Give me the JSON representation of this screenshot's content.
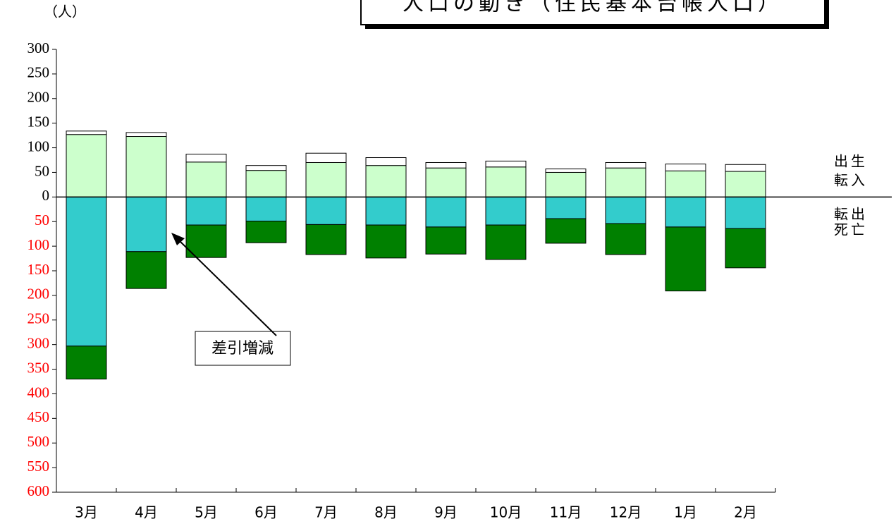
{
  "chart_data": {
    "type": "bar",
    "stacked": true,
    "title": "人口の動き（住民基本台帳人口）",
    "y_label": "（人）",
    "annotation": "差引増減",
    "categories": [
      "3月",
      "4月",
      "5月",
      "6月",
      "7月",
      "8月",
      "9月",
      "10月",
      "11月",
      "12月",
      "1月",
      "2月"
    ],
    "series": [
      {
        "name": "転入",
        "color": "#ccffcc",
        "values": [
          127,
          123,
          71,
          54,
          70,
          64,
          59,
          61,
          50,
          59,
          53,
          52
        ]
      },
      {
        "name": "出生",
        "color": "#ffffff",
        "values": [
          7,
          8,
          16,
          10,
          19,
          16,
          11,
          12,
          7,
          11,
          14,
          14
        ]
      },
      {
        "name": "転出",
        "color": "#33cccc",
        "values": [
          -303,
          -111,
          -57,
          -49,
          -56,
          -57,
          -61,
          -57,
          -44,
          -54,
          -61,
          -64
        ]
      },
      {
        "name": "死亡",
        "color": "#008000",
        "values": [
          -67,
          -75,
          -66,
          -44,
          -61,
          -67,
          -55,
          -70,
          -50,
          -63,
          -130,
          -80
        ]
      }
    ],
    "ylim": [
      -600,
      300
    ],
    "yticks": [
      300,
      250,
      200,
      150,
      100,
      50,
      0,
      {
        "value": -50,
        "label": "50"
      },
      {
        "value": -100,
        "label": "100"
      },
      {
        "value": -150,
        "label": "150"
      },
      {
        "value": -200,
        "label": "200"
      },
      {
        "value": -250,
        "label": "250"
      },
      {
        "value": -300,
        "label": "300"
      },
      {
        "value": -350,
        "label": "350"
      },
      {
        "value": -400,
        "label": "400"
      },
      {
        "value": -450,
        "label": "450"
      },
      {
        "value": -500,
        "label": "500"
      },
      {
        "value": -550,
        "label": "550"
      },
      {
        "value": -600,
        "label": "600"
      }
    ],
    "negative_tick_color": "#ff0000",
    "grid": false
  }
}
